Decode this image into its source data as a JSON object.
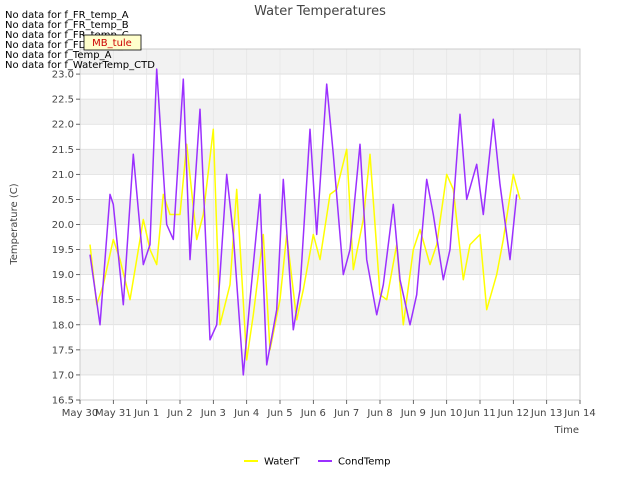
{
  "chart_data": {
    "type": "line",
    "title": "Water Temperatures",
    "xlabel": "Time",
    "ylabel": "Temperature (C)",
    "no_data_messages": [
      "No data for f_FR_temp_A",
      "No data for f_FR_temp_B",
      "No data for f_FR_temp_C",
      "No data for f_FD_Temp_1",
      "No data for f_Temp_A",
      "No data for f_WaterTemp_CTD"
    ],
    "annotation": "MB_tule",
    "x_ticks": [
      "May 30",
      "May 31",
      "Jun 1",
      "Jun 2",
      "Jun 3",
      "Jun 4",
      "Jun 5",
      "Jun 6",
      "Jun 7",
      "Jun 8",
      "Jun 9",
      "Jun 10",
      "Jun 11",
      "Jun 12",
      "Jun 13",
      "Jun 14"
    ],
    "xlim": [
      0,
      15
    ],
    "ylim": [
      16.5,
      23.5
    ],
    "y_ticks": [
      "16.5",
      "17.0",
      "17.5",
      "18.0",
      "18.5",
      "19.0",
      "19.5",
      "20.0",
      "20.5",
      "21.0",
      "21.5",
      "22.0",
      "22.5",
      "23.0"
    ],
    "grid": true,
    "legend_position": "bottom-center",
    "series": [
      {
        "name": "WaterT",
        "color": "#ffff00",
        "x": [
          0.3,
          0.5,
          0.7,
          1.0,
          1.2,
          1.5,
          1.7,
          1.9,
          2.1,
          2.3,
          2.5,
          2.7,
          3.0,
          3.2,
          3.5,
          3.7,
          4.0,
          4.2,
          4.5,
          4.7,
          5.0,
          5.2,
          5.5,
          5.7,
          6.0,
          6.2,
          6.5,
          6.7,
          7.0,
          7.2,
          7.5,
          7.7,
          8.0,
          8.2,
          8.5,
          8.7,
          9.0,
          9.2,
          9.5,
          9.7,
          10.0,
          10.2,
          10.5,
          10.7,
          11.0,
          11.2,
          11.5,
          11.7,
          12.0,
          12.2,
          12.5,
          12.7,
          13.0,
          13.2
        ],
        "values": [
          19.6,
          18.4,
          18.8,
          19.7,
          19.3,
          18.5,
          19.3,
          20.1,
          19.5,
          19.2,
          20.6,
          20.2,
          20.2,
          21.6,
          19.7,
          20.2,
          21.9,
          18.0,
          18.8,
          20.7,
          17.3,
          18.2,
          19.8,
          17.5,
          18.5,
          19.8,
          18.1,
          18.7,
          19.8,
          19.3,
          20.6,
          20.7,
          21.5,
          19.1,
          20.1,
          21.4,
          18.6,
          18.5,
          19.6,
          18.0,
          19.5,
          19.9,
          19.2,
          19.6,
          21.0,
          20.7,
          18.9,
          19.6,
          19.8,
          18.3,
          19.0,
          19.7,
          21.0,
          20.5
        ]
      },
      {
        "name": "CondTemp",
        "color": "#9b30ff",
        "x": [
          0.3,
          0.6,
          0.9,
          1.0,
          1.3,
          1.6,
          1.9,
          2.1,
          2.3,
          2.6,
          2.8,
          3.1,
          3.3,
          3.6,
          3.9,
          4.1,
          4.4,
          4.6,
          4.9,
          5.1,
          5.4,
          5.6,
          5.9,
          6.1,
          6.4,
          6.6,
          6.9,
          7.1,
          7.4,
          7.6,
          7.9,
          8.1,
          8.4,
          8.6,
          8.9,
          9.1,
          9.4,
          9.6,
          9.9,
          10.1,
          10.4,
          10.6,
          10.9,
          11.1,
          11.4,
          11.6,
          11.9,
          12.1,
          12.4,
          12.6,
          12.9,
          13.1
        ],
        "values": [
          19.4,
          18.0,
          20.6,
          20.4,
          18.4,
          21.4,
          19.2,
          19.6,
          23.1,
          20.0,
          19.7,
          22.9,
          19.3,
          22.3,
          17.7,
          18.0,
          21.0,
          19.8,
          17.0,
          18.5,
          20.6,
          17.2,
          18.3,
          20.9,
          17.9,
          18.7,
          21.9,
          19.8,
          22.8,
          21.4,
          19.0,
          19.5,
          21.6,
          19.3,
          18.2,
          18.8,
          20.4,
          18.9,
          18.0,
          18.6,
          20.9,
          20.2,
          18.9,
          19.5,
          22.2,
          20.5,
          21.2,
          20.2,
          22.1,
          20.8,
          19.3,
          20.6
        ]
      }
    ]
  }
}
